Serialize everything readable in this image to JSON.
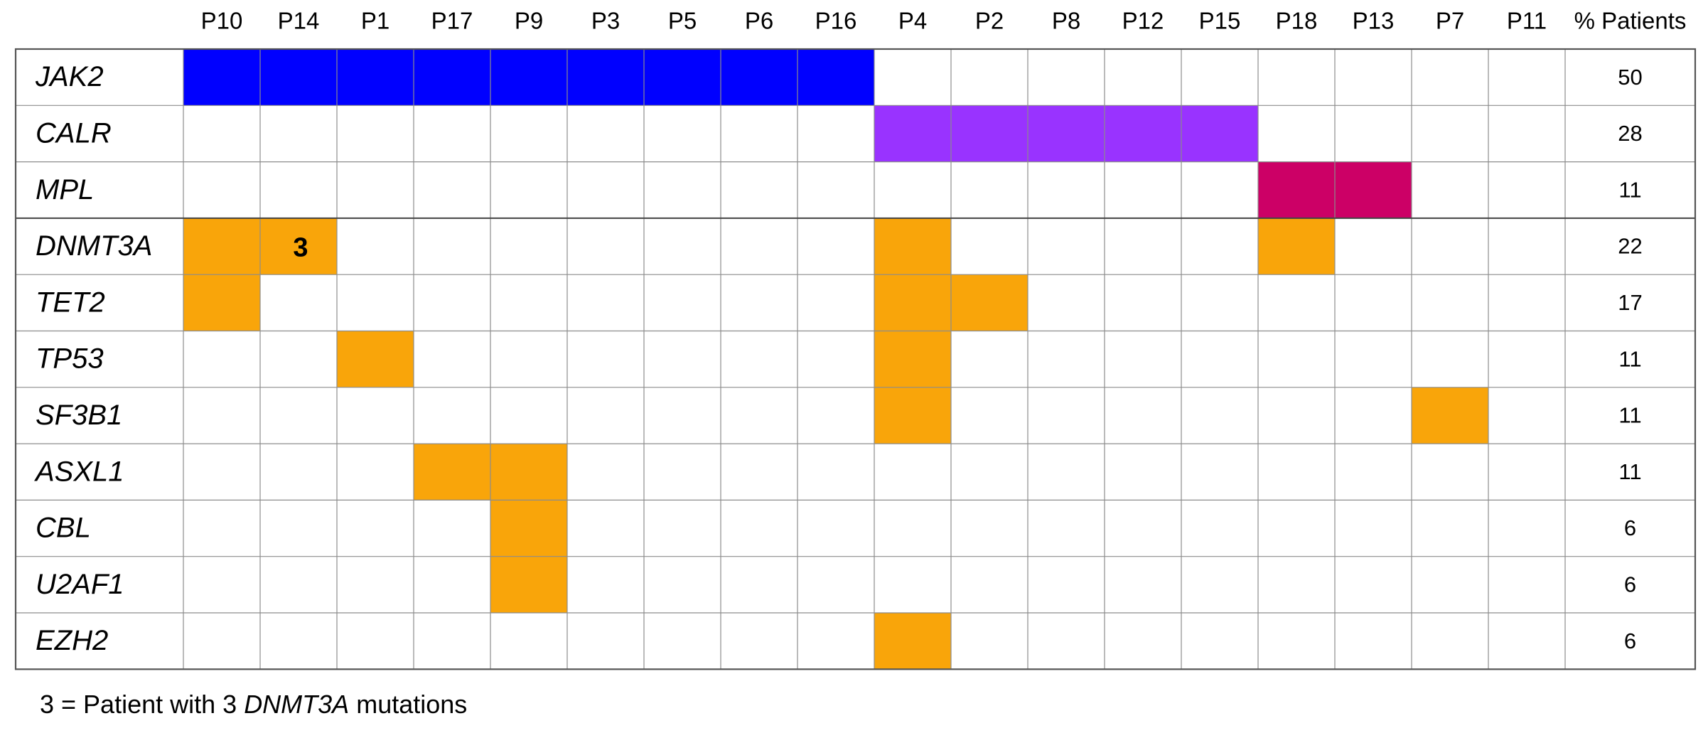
{
  "chart_data": {
    "type": "heatmap",
    "title": "",
    "percent_header": "% Patients",
    "patients": [
      "P10",
      "P14",
      "P1",
      "P17",
      "P9",
      "P3",
      "P5",
      "P6",
      "P16",
      "P4",
      "P2",
      "P8",
      "P12",
      "P15",
      "P18",
      "P13",
      "P7",
      "P11"
    ],
    "colors": {
      "JAK2": "#0000ff",
      "CALR": "#9933ff",
      "MPL": "#cc0066",
      "other": "#f9a50a",
      "empty": "#ffffff"
    },
    "rows": [
      {
        "gene": "JAK2",
        "category": "JAK2",
        "percent": "50",
        "mutated": [
          "P10",
          "P14",
          "P1",
          "P17",
          "P9",
          "P3",
          "P5",
          "P6",
          "P16"
        ]
      },
      {
        "gene": "CALR",
        "category": "CALR",
        "percent": "28",
        "mutated": [
          "P4",
          "P2",
          "P8",
          "P12",
          "P15"
        ]
      },
      {
        "gene": "MPL",
        "category": "MPL",
        "percent": "11",
        "mutated": [
          "P18",
          "P13"
        ]
      },
      {
        "gene": "DNMT3A",
        "category": "other",
        "percent": "22",
        "mutated": [
          "P10",
          "P14",
          "P4",
          "P18"
        ]
      },
      {
        "gene": "TET2",
        "category": "other",
        "percent": "17",
        "mutated": [
          "P10",
          "P4",
          "P2"
        ]
      },
      {
        "gene": "TP53",
        "category": "other",
        "percent": "11",
        "mutated": [
          "P1",
          "P4"
        ]
      },
      {
        "gene": "SF3B1",
        "category": "other",
        "percent": "11",
        "mutated": [
          "P4",
          "P7"
        ]
      },
      {
        "gene": "ASXL1",
        "category": "other",
        "percent": "11",
        "mutated": [
          "P17",
          "P9"
        ]
      },
      {
        "gene": "CBL",
        "category": "other",
        "percent": "6",
        "mutated": [
          "P9"
        ]
      },
      {
        "gene": "U2AF1",
        "category": "other",
        "percent": "6",
        "mutated": [
          "P9"
        ]
      },
      {
        "gene": "EZH2",
        "category": "other",
        "percent": "6",
        "mutated": [
          "P4"
        ]
      }
    ],
    "annotations": [
      {
        "gene": "DNMT3A",
        "patient": "P14",
        "label": "3"
      }
    ]
  },
  "footnote": {
    "prefix": "3 = Patient with 3 ",
    "gene": "DNMT3A",
    "suffix": " mutations"
  }
}
